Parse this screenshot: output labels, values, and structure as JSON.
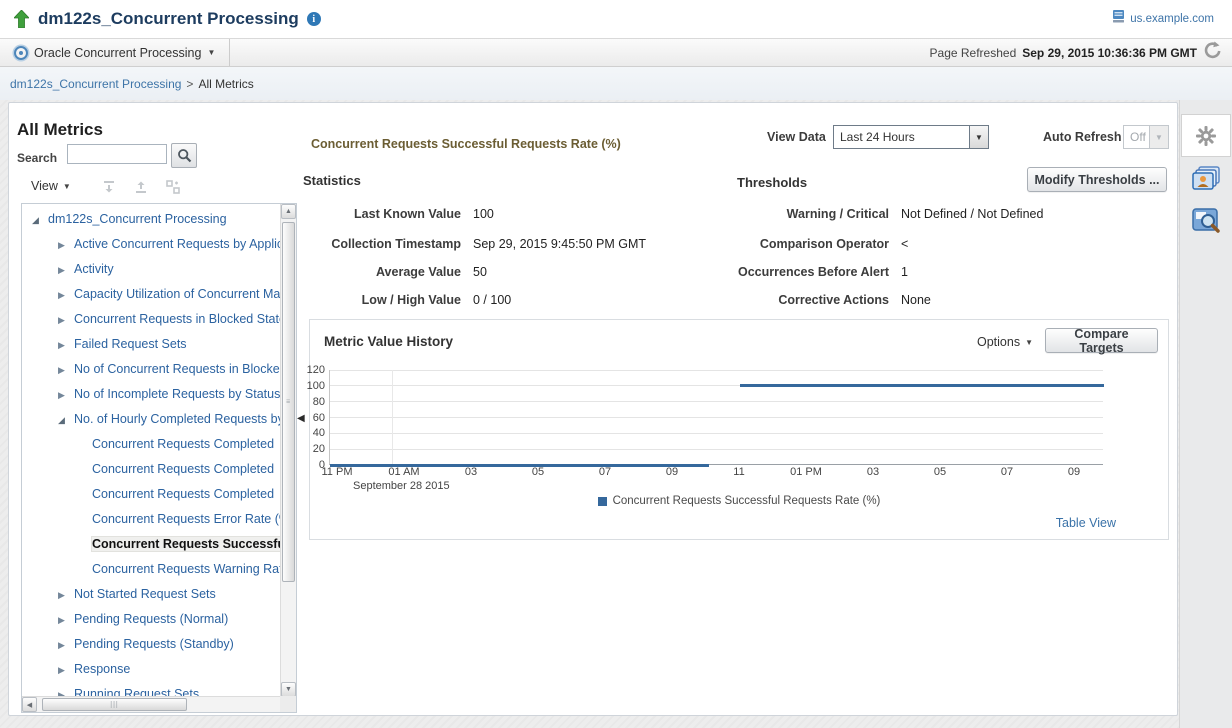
{
  "header": {
    "title": "dm122s_Concurrent Processing",
    "host": "us.example.com"
  },
  "context_bar": {
    "target_menu": "Oracle Concurrent Processing",
    "page_refreshed_label": "Page Refreshed",
    "page_refreshed_value": "Sep 29, 2015 10:36:36 PM GMT"
  },
  "breadcrumb": {
    "parent": "dm122s_Concurrent Processing",
    "separator": ">",
    "current": "All Metrics"
  },
  "metrics_panel": {
    "title": "All Metrics",
    "search_label": "Search",
    "search_value": "",
    "view_label": "View"
  },
  "tree": {
    "items": [
      {
        "label": "dm122s_Concurrent Processing",
        "level": 0,
        "state": "expanded",
        "selected": false
      },
      {
        "label": "Active Concurrent Requests by Application",
        "level": 1,
        "state": "collapsed",
        "selected": false
      },
      {
        "label": "Activity",
        "level": 1,
        "state": "collapsed",
        "selected": false
      },
      {
        "label": "Capacity Utilization of Concurrent Managers",
        "level": 1,
        "state": "collapsed",
        "selected": false
      },
      {
        "label": "Concurrent Requests in Blocked State",
        "level": 1,
        "state": "collapsed",
        "selected": false
      },
      {
        "label": "Failed Request Sets",
        "level": 1,
        "state": "collapsed",
        "selected": false
      },
      {
        "label": "No of Concurrent Requests in Blocked State",
        "level": 1,
        "state": "collapsed",
        "selected": false
      },
      {
        "label": "No of Incomplete Requests by Status",
        "level": 1,
        "state": "collapsed",
        "selected": false
      },
      {
        "label": "No. of Hourly Completed Requests by Status",
        "level": 1,
        "state": "expanded",
        "selected": false
      },
      {
        "label": "Concurrent Requests Completed",
        "level": 2,
        "state": "leaf",
        "selected": false
      },
      {
        "label": "Concurrent Requests Completed",
        "level": 2,
        "state": "leaf",
        "selected": false
      },
      {
        "label": "Concurrent Requests Completed",
        "level": 2,
        "state": "leaf",
        "selected": false
      },
      {
        "label": "Concurrent Requests Error Rate (%)",
        "level": 2,
        "state": "leaf",
        "selected": false
      },
      {
        "label": "Concurrent Requests Successful Requests Rate (%)",
        "level": 2,
        "state": "leaf",
        "selected": true
      },
      {
        "label": "Concurrent Requests Warning Rate (%)",
        "level": 2,
        "state": "leaf",
        "selected": false
      },
      {
        "label": "Not Started Request Sets",
        "level": 1,
        "state": "collapsed",
        "selected": false
      },
      {
        "label": "Pending Requests (Normal)",
        "level": 1,
        "state": "collapsed",
        "selected": false
      },
      {
        "label": "Pending Requests (Standby)",
        "level": 1,
        "state": "collapsed",
        "selected": false
      },
      {
        "label": "Response",
        "level": 1,
        "state": "collapsed",
        "selected": false
      },
      {
        "label": "Running Request Sets",
        "level": 1,
        "state": "collapsed",
        "selected": false
      }
    ]
  },
  "detail": {
    "metric_title": "Concurrent Requests Successful Requests Rate (%)",
    "view_data_label": "View Data",
    "view_data_value": "Last 24 Hours",
    "auto_refresh_label": "Auto Refresh",
    "auto_refresh_value": "Off",
    "statistics": {
      "title": "Statistics",
      "rows": [
        {
          "label": "Last Known Value",
          "value": "100"
        },
        {
          "label": "Collection Timestamp",
          "value": "Sep 29, 2015 9:45:50 PM GMT"
        },
        {
          "label": "Average Value",
          "value": "50"
        },
        {
          "label": "Low / High Value",
          "value": "0  /  100"
        }
      ]
    },
    "thresholds": {
      "title": "Thresholds",
      "modify_button": "Modify Thresholds ...",
      "rows": [
        {
          "label": "Warning / Critical",
          "value": "Not Defined  /  Not Defined"
        },
        {
          "label": "Comparison Operator",
          "value": "<"
        },
        {
          "label": "Occurrences Before Alert",
          "value": "1"
        },
        {
          "label": "Corrective Actions",
          "value": "None"
        }
      ]
    },
    "history": {
      "title": "Metric Value History",
      "options_label": "Options",
      "compare_button": "Compare Targets",
      "table_view_link": "Table View"
    }
  },
  "icons": {
    "go_up_icon": "green up arrow",
    "info_icon": "blue circle i",
    "target_icon": "bullseye",
    "host_icon": "server",
    "refresh_icon": "circular arrow",
    "search_icon": "magnifier",
    "dropdown_icon": "▼",
    "collapsed_node_icon": "▶",
    "expanded_node_icon": "◢",
    "splitter_collapse_icon": "◀",
    "gear_icon": "gear",
    "related_targets_icon": "stacked photos person",
    "find_icon": "window magnifier"
  },
  "colors": {
    "accent_blue_link": "#3e74a8",
    "tree_link": "#2b62a0",
    "title_navy": "#1d3c5f",
    "metric_title_olive": "#6b5d33",
    "chart_line": "#35689c"
  },
  "chart_data": {
    "type": "line",
    "title": "Metric Value History",
    "xlabel": "",
    "ylabel": "",
    "ylim": [
      0,
      120
    ],
    "y_ticks": [
      0,
      20,
      40,
      60,
      80,
      100,
      120
    ],
    "x_ticks": [
      "11 PM",
      "01 AM",
      "03",
      "05",
      "07",
      "09",
      "11",
      "01 PM",
      "03",
      "05",
      "07",
      "09"
    ],
    "x_start_date_label": "September 28 2015",
    "x_range_hours": 22,
    "grid": true,
    "legend_position": "bottom",
    "v_gridline_fracs": [
      0.08
    ],
    "series": [
      {
        "name": "Concurrent Requests Successful Requests Rate (%)",
        "color": "#35689c",
        "segments": [
          {
            "value": 0,
            "start_frac": 0.0,
            "end_frac": 0.49
          },
          {
            "value": 100,
            "start_frac": 0.53,
            "end_frac": 1.0
          }
        ]
      }
    ]
  }
}
